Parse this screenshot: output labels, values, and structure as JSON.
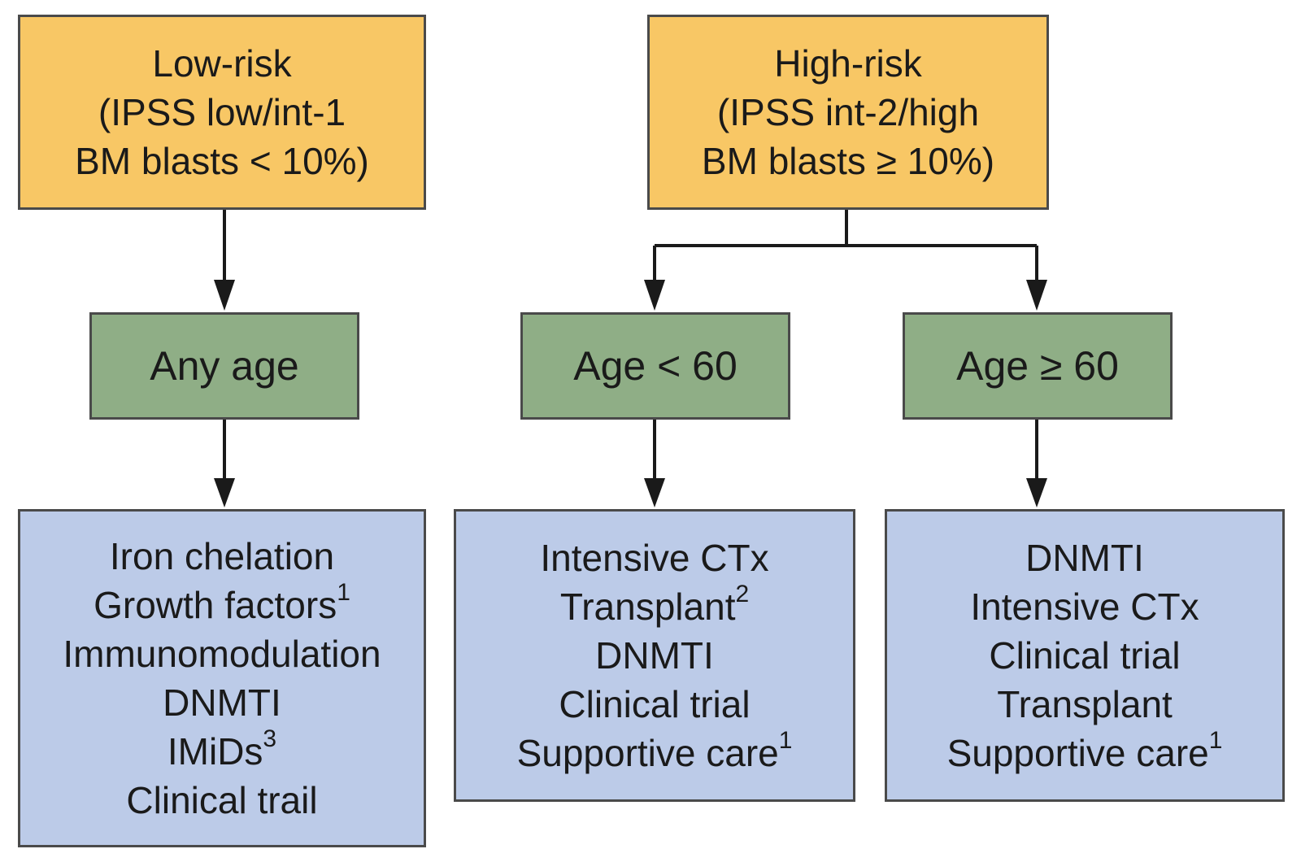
{
  "low_risk": {
    "title": "Low-risk",
    "line2": "(IPSS low/int-1",
    "line3": "BM blasts < 10%)"
  },
  "high_risk": {
    "title": "High-risk",
    "line2": "(IPSS int-2/high",
    "line3": "BM blasts ≥ 10%)"
  },
  "age_groups": {
    "any": "Any age",
    "under60": "Age < 60",
    "over60": "Age ≥ 60"
  },
  "treatments": {
    "low": [
      {
        "text": "Iron chelation",
        "sup": ""
      },
      {
        "text": "Growth factors",
        "sup": "1"
      },
      {
        "text": "Immunomodulation",
        "sup": ""
      },
      {
        "text": "DNMTI",
        "sup": ""
      },
      {
        "text": "IMiDs",
        "sup": "3"
      },
      {
        "text": "Clinical trail",
        "sup": ""
      }
    ],
    "high_under60": [
      {
        "text": "Intensive CTx",
        "sup": ""
      },
      {
        "text": "Transplant",
        "sup": "2"
      },
      {
        "text": "DNMTI",
        "sup": ""
      },
      {
        "text": "Clinical trial",
        "sup": ""
      },
      {
        "text": "Supportive care",
        "sup": "1"
      }
    ],
    "high_over60": [
      {
        "text": "DNMTI",
        "sup": ""
      },
      {
        "text": "Intensive CTx",
        "sup": ""
      },
      {
        "text": "Clinical trial",
        "sup": ""
      },
      {
        "text": "Transplant",
        "sup": ""
      },
      {
        "text": "Supportive care",
        "sup": "1"
      }
    ]
  },
  "colors": {
    "risk_box": "#f8c765",
    "age_box": "#8fae86",
    "treatment_box": "#bccbe8",
    "border": "#4a4a4a",
    "arrow": "#1a1a1a"
  }
}
